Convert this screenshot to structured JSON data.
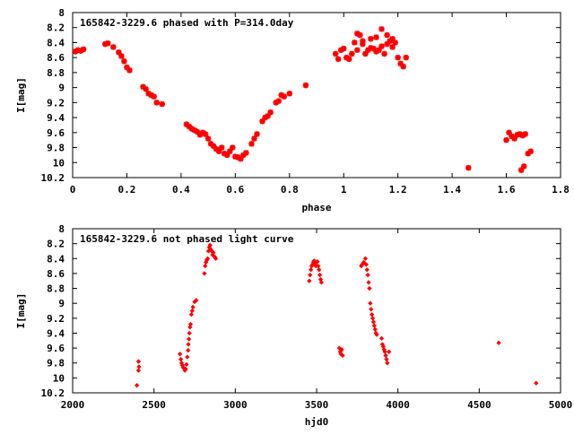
{
  "colors": {
    "points": "#ff0000",
    "axes": "#000000",
    "background": "#ffffff"
  },
  "chart_data": [
    {
      "type": "scatter",
      "title": "165842-3229.6 phased with P=314.0day",
      "xlabel": "phase",
      "ylabel": "I[mag]",
      "xlim": [
        0,
        1.8
      ],
      "ylim": [
        8,
        10.2
      ],
      "y_inverted": true,
      "grid": false,
      "legend": "none",
      "xticks": [
        "0",
        "0.2",
        "0.4",
        "0.6",
        "0.8",
        "1",
        "1.2",
        "1.4",
        "1.6",
        "1.8"
      ],
      "yticks": [
        "8",
        "8.2",
        "8.4",
        "8.6",
        "8.8",
        "9",
        "9.2",
        "9.4",
        "9.6",
        "9.8",
        "10",
        "10.2"
      ],
      "series": [
        {
          "marker": "star",
          "x": [
            0.01,
            0.02,
            0.03,
            0.04,
            0.12,
            0.13,
            0.15,
            0.17,
            0.18,
            0.19,
            0.2,
            0.21,
            0.26,
            0.27,
            0.28,
            0.29,
            0.3,
            0.31,
            0.33,
            0.42,
            0.43,
            0.44,
            0.45,
            0.46,
            0.47,
            0.48,
            0.49,
            0.5,
            0.51,
            0.52,
            0.53,
            0.54,
            0.55,
            0.56,
            0.57,
            0.58,
            0.59,
            0.6,
            0.61,
            0.62,
            0.63,
            0.64,
            0.66,
            0.67,
            0.68,
            0.7,
            0.71,
            0.72,
            0.73,
            0.75,
            0.76,
            0.77,
            0.78,
            0.8,
            0.86,
            0.97,
            0.98,
            0.99,
            1.0,
            1.01,
            1.02,
            1.03,
            1.04,
            1.05,
            1.06,
            1.07,
            1.08,
            1.09,
            1.1,
            1.11,
            1.12,
            1.13,
            1.14,
            1.15,
            1.16,
            1.17,
            1.18,
            1.19,
            1.2,
            1.21,
            1.22,
            1.23,
            1.05,
            1.07,
            1.1,
            1.12,
            1.14,
            1.16,
            1.18,
            1.46,
            1.6,
            1.61,
            1.62,
            1.63,
            1.64,
            1.65,
            1.66,
            1.67,
            1.68,
            1.69,
            1.655,
            1.665
          ],
          "y": [
            8.52,
            8.5,
            8.51,
            8.49,
            8.42,
            8.41,
            8.46,
            8.53,
            8.58,
            8.65,
            8.73,
            8.77,
            8.99,
            9.02,
            9.08,
            9.1,
            9.12,
            9.2,
            9.22,
            9.49,
            9.52,
            9.55,
            9.57,
            9.59,
            9.63,
            9.6,
            9.62,
            9.68,
            9.75,
            9.78,
            9.82,
            9.85,
            9.8,
            9.88,
            9.9,
            9.85,
            9.8,
            9.92,
            9.93,
            9.95,
            9.9,
            9.87,
            9.75,
            9.68,
            9.62,
            9.45,
            9.4,
            9.38,
            9.33,
            9.2,
            9.18,
            9.1,
            9.12,
            9.08,
            8.97,
            8.55,
            8.62,
            8.5,
            8.48,
            8.6,
            8.62,
            8.55,
            8.4,
            8.28,
            8.3,
            8.42,
            8.55,
            8.5,
            8.47,
            8.48,
            8.52,
            8.5,
            8.45,
            8.55,
            8.42,
            8.38,
            8.46,
            8.4,
            8.6,
            8.68,
            8.72,
            8.6,
            8.5,
            8.38,
            8.35,
            8.33,
            8.22,
            8.3,
            8.35,
            10.07,
            9.7,
            9.6,
            9.65,
            9.68,
            9.63,
            9.62,
            9.64,
            9.62,
            9.88,
            9.85,
            10.1,
            10.05
          ]
        }
      ]
    },
    {
      "type": "scatter",
      "title": "165842-3229.6 not phased light curve",
      "xlabel": "hjd0",
      "ylabel": "I[mag]",
      "xlim": [
        2000,
        5000
      ],
      "ylim": [
        8,
        10.2
      ],
      "y_inverted": true,
      "grid": false,
      "legend": "none",
      "xticks": [
        "2000",
        "2500",
        "3000",
        "3500",
        "4000",
        "4500",
        "5000"
      ],
      "yticks": [
        "8",
        "8.2",
        "8.4",
        "8.6",
        "8.8",
        "9",
        "9.2",
        "9.4",
        "9.6",
        "9.8",
        "10",
        "10.2"
      ],
      "series": [
        {
          "marker": "diamond",
          "x": [
            2395,
            2405,
            2405,
            2408,
            2660,
            2665,
            2670,
            2675,
            2680,
            2690,
            2695,
            2700,
            2705,
            2710,
            2712,
            2715,
            2718,
            2722,
            2725,
            2730,
            2735,
            2740,
            2750,
            2760,
            2810,
            2815,
            2820,
            2825,
            2830,
            2835,
            2840,
            2845,
            2850,
            2855,
            2860,
            2865,
            2870,
            2875,
            2880,
            3455,
            3460,
            3465,
            3470,
            3475,
            3480,
            3485,
            3490,
            3495,
            3500,
            3505,
            3510,
            3515,
            3520,
            3525,
            3530,
            3640,
            3645,
            3650,
            3655,
            3660,
            3775,
            3780,
            3790,
            3800,
            3805,
            3810,
            3815,
            3820,
            3825,
            3830,
            3835,
            3840,
            3845,
            3850,
            3855,
            3860,
            3865,
            3870,
            3900,
            3905,
            3910,
            3915,
            3920,
            3925,
            3930,
            3935,
            3945,
            4620,
            4850
          ],
          "y": [
            10.1,
            9.9,
            9.78,
            9.85,
            9.68,
            9.75,
            9.8,
            9.83,
            9.86,
            9.9,
            9.88,
            9.82,
            9.72,
            9.63,
            9.55,
            9.48,
            9.4,
            9.32,
            9.28,
            9.15,
            9.1,
            9.05,
            8.98,
            8.96,
            8.6,
            8.5,
            8.45,
            8.42,
            8.4,
            8.3,
            8.25,
            8.22,
            8.28,
            8.3,
            8.35,
            8.32,
            8.37,
            8.38,
            8.4,
            8.7,
            8.62,
            8.55,
            8.5,
            8.48,
            8.45,
            8.43,
            8.47,
            8.5,
            8.45,
            8.44,
            8.5,
            8.55,
            8.62,
            8.68,
            8.72,
            9.6,
            9.65,
            9.68,
            9.62,
            9.7,
            8.5,
            8.48,
            8.45,
            8.4,
            8.48,
            8.55,
            8.62,
            8.72,
            8.8,
            9.0,
            9.08,
            9.15,
            9.2,
            9.25,
            9.3,
            9.35,
            9.4,
            9.42,
            9.47,
            9.55,
            9.58,
            9.62,
            9.65,
            9.7,
            9.75,
            9.8,
            9.65,
            9.53,
            10.07
          ]
        }
      ]
    }
  ]
}
